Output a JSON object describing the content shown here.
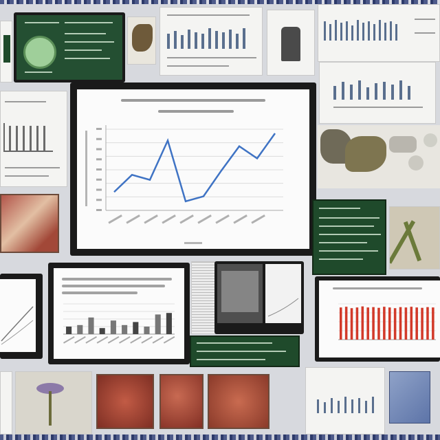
{
  "collage": {
    "description_free": true,
    "main_chart": {
      "y_ticks": [
        "70",
        "65",
        "60",
        "55",
        "50",
        "45",
        "40",
        "35",
        "30"
      ],
      "y_values": [
        0.18,
        0.42,
        0.35,
        0.9,
        0.05,
        0.12,
        0.48,
        0.82,
        0.65,
        1.0
      ]
    },
    "colors": {
      "line": "#3f73c4",
      "red_bars": "#d23a2a",
      "chalkboard": "#1f4a2b",
      "frame": "#1a1a1a"
    }
  },
  "chart_data": [
    {
      "type": "line",
      "x": [
        1,
        2,
        3,
        4,
        5,
        6,
        7,
        8,
        9,
        10
      ],
      "y": [
        0.18,
        0.42,
        0.35,
        0.9,
        0.05,
        0.12,
        0.48,
        0.82,
        0.65,
        1.0
      ],
      "grid": true
    },
    {
      "type": "bar",
      "values": [
        0.25,
        0.3,
        0.55,
        0.2,
        0.45,
        0.3,
        0.4,
        0.25,
        0.65,
        0.7
      ],
      "grid": true
    },
    {
      "type": "bar",
      "values": [
        0.9,
        0.92,
        0.88,
        0.9,
        0.93,
        0.9,
        0.91,
        0.89,
        0.92,
        0.9,
        0.88,
        0.91,
        0.9,
        0.92,
        0.9,
        0.89,
        0.91,
        0.9
      ]
    }
  ]
}
